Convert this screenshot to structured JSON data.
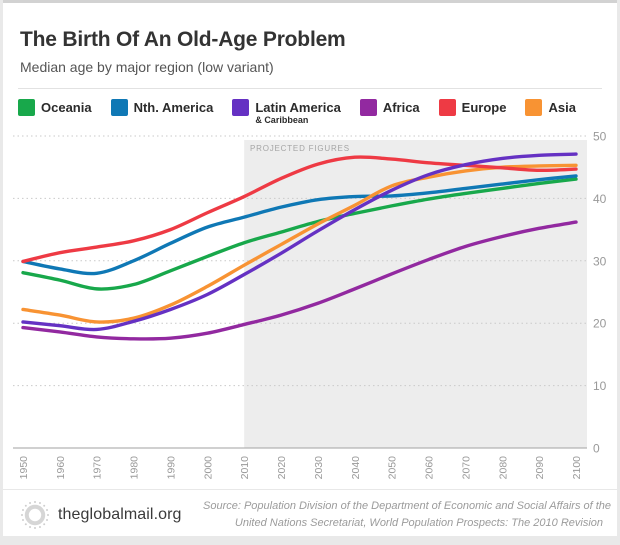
{
  "page": {
    "title": "The Birth Of An Old-Age Problem",
    "subtitle": "Median age by major region (low variant)"
  },
  "legend": [
    {
      "label": "Oceania",
      "sub": "",
      "color": "#18a84b"
    },
    {
      "label": "Nth. America",
      "sub": "",
      "color": "#0f78b5"
    },
    {
      "label": "Latin America",
      "sub": "& Caribbean",
      "color": "#6531c3"
    },
    {
      "label": "Africa",
      "sub": "",
      "color": "#9229a0"
    },
    {
      "label": "Europe",
      "sub": "",
      "color": "#ee3a44"
    },
    {
      "label": "Asia",
      "sub": "",
      "color": "#f89333"
    }
  ],
  "chart_data": {
    "type": "line",
    "title": "The Birth Of An Old-Age Problem",
    "subtitle": "Median age by major region (low variant)",
    "xlabel": "",
    "ylabel": "",
    "x": [
      1950,
      1960,
      1970,
      1980,
      1990,
      2000,
      2010,
      2020,
      2030,
      2040,
      2050,
      2060,
      2070,
      2080,
      2090,
      2100
    ],
    "xlim": [
      1950,
      2100
    ],
    "ylim": [
      0,
      50
    ],
    "y_ticks": [
      0,
      10,
      20,
      30,
      40,
      50
    ],
    "grid": "horizontal-dotted",
    "legend_position": "top",
    "projected_region": {
      "label": "PROJECTED FIGURES",
      "start": 2010,
      "end": 2100,
      "fill": "#ededed"
    },
    "series": [
      {
        "name": "Oceania",
        "color": "#18a84b",
        "z": 1,
        "values": [
          28.1,
          26.9,
          25.5,
          26.2,
          28.4,
          30.7,
          32.9,
          34.6,
          36.3,
          37.6,
          38.8,
          39.9,
          40.8,
          41.6,
          42.4,
          43.1
        ]
      },
      {
        "name": "Nth. America",
        "color": "#0f78b5",
        "z": 2,
        "values": [
          29.9,
          28.7,
          28.0,
          30.0,
          32.8,
          35.4,
          37.0,
          38.6,
          39.8,
          40.3,
          40.4,
          40.9,
          41.6,
          42.3,
          43.0,
          43.6
        ]
      },
      {
        "name": "Latin America & Caribbean",
        "color": "#6531c3",
        "z": 6,
        "values": [
          20.2,
          19.6,
          19.0,
          20.3,
          22.2,
          24.6,
          27.8,
          31.2,
          34.8,
          38.2,
          41.3,
          43.8,
          45.4,
          46.4,
          46.9,
          47.1
        ]
      },
      {
        "name": "Africa",
        "color": "#9229a0",
        "z": 4,
        "values": [
          19.3,
          18.6,
          17.8,
          17.5,
          17.6,
          18.4,
          19.8,
          21.3,
          23.2,
          25.5,
          27.9,
          30.2,
          32.3,
          33.9,
          35.2,
          36.2
        ]
      },
      {
        "name": "Europe",
        "color": "#ee3a44",
        "z": 5,
        "values": [
          29.9,
          31.3,
          32.2,
          33.2,
          35.0,
          37.7,
          40.3,
          43.2,
          45.5,
          46.6,
          46.3,
          45.7,
          45.3,
          44.9,
          44.5,
          44.7
        ]
      },
      {
        "name": "Asia",
        "color": "#f89333",
        "z": 3,
        "values": [
          22.2,
          21.3,
          20.2,
          20.8,
          22.9,
          25.9,
          29.3,
          32.6,
          35.9,
          38.9,
          42.0,
          43.4,
          44.4,
          45.0,
          45.2,
          45.3
        ]
      }
    ]
  },
  "footer": {
    "brand": "theglobalmail.org",
    "source_line1": "Source: Population Division of the Department of Economic and Social Affairs of the",
    "source_line2": "United Nations Secretariat, World Population Prospects: The 2010 Revision"
  }
}
